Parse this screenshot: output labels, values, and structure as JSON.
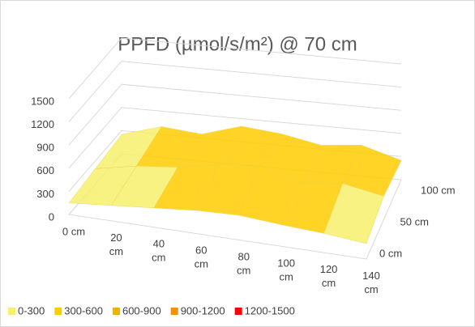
{
  "chart_data": {
    "type": "surface",
    "title": "PPFD (µmol/s/m²) @ 70 cm",
    "categories": [
      "0 cm",
      "20 cm",
      "40 cm",
      "60 cm",
      "80 cm",
      "100 cm",
      "120 cm",
      "140 cm"
    ],
    "series": [
      {
        "name": "0 cm",
        "values": [
          150,
          200,
          250,
          300,
          320,
          280,
          250,
          200
        ]
      },
      {
        "name": "50 cm",
        "values": [
          200,
          300,
          350,
          450,
          500,
          350,
          400,
          300
        ]
      },
      {
        "name": "100 cm",
        "values": [
          250,
          400,
          350,
          500,
          450,
          350,
          400,
          250
        ]
      }
    ],
    "zlim": [
      0,
      1500
    ],
    "zticks": [
      0,
      300,
      600,
      900,
      1200,
      1500
    ],
    "bands": [
      {
        "name": "0-300",
        "color": "#f7f06c"
      },
      {
        "name": "300-600",
        "color": "#ffcc00"
      },
      {
        "name": "600-900",
        "color": "#f2b100"
      },
      {
        "name": "900-1200",
        "color": "#f29200"
      },
      {
        "name": "1200-1500",
        "color": "#ff0000"
      }
    ],
    "grid": true
  }
}
